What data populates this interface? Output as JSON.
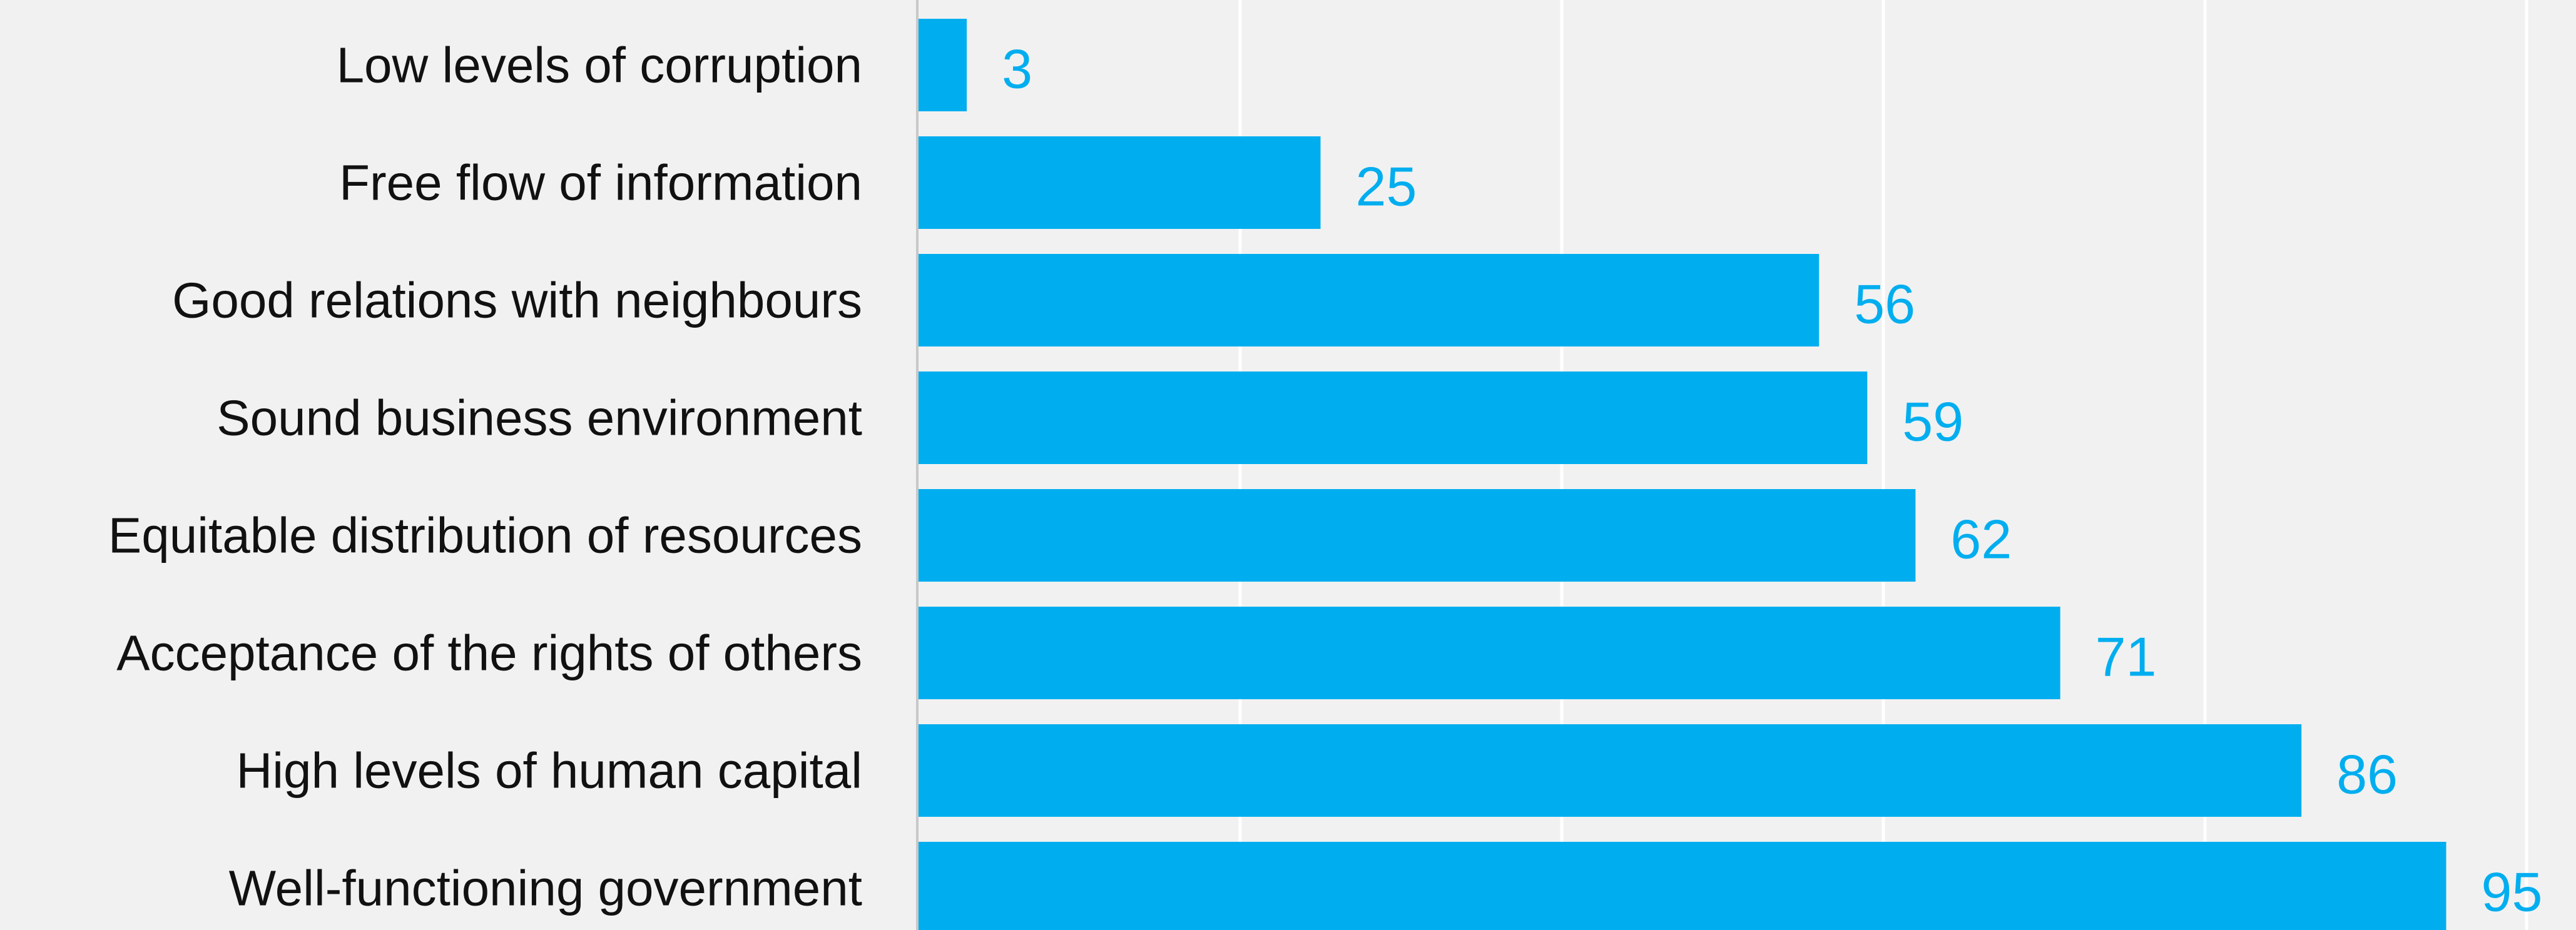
{
  "colors": {
    "background": "#f1f1f1",
    "bar": "#00aeef",
    "value_label": "#00aeef",
    "category_label": "#111111",
    "gridline": "#ffffff",
    "axis": "#c8c8c8"
  },
  "chart_data": {
    "type": "bar",
    "orientation": "horizontal",
    "categories": [
      "Low levels of corruption",
      "Free flow of information",
      "Good relations with neighbours",
      "Sound business environment",
      "Equitable distribution of resources",
      "Acceptance of the rights of others",
      "High levels of human capital",
      "Well-functioning government"
    ],
    "values": [
      3,
      25,
      56,
      59,
      62,
      71,
      86,
      95
    ],
    "value_labels": [
      "3",
      "25",
      "56",
      "59",
      "62",
      "71",
      "86",
      "95"
    ],
    "xlim": [
      0,
      100
    ],
    "gridlines_at": [
      20,
      40,
      60,
      80,
      100
    ],
    "grid": true,
    "legend": "none"
  }
}
